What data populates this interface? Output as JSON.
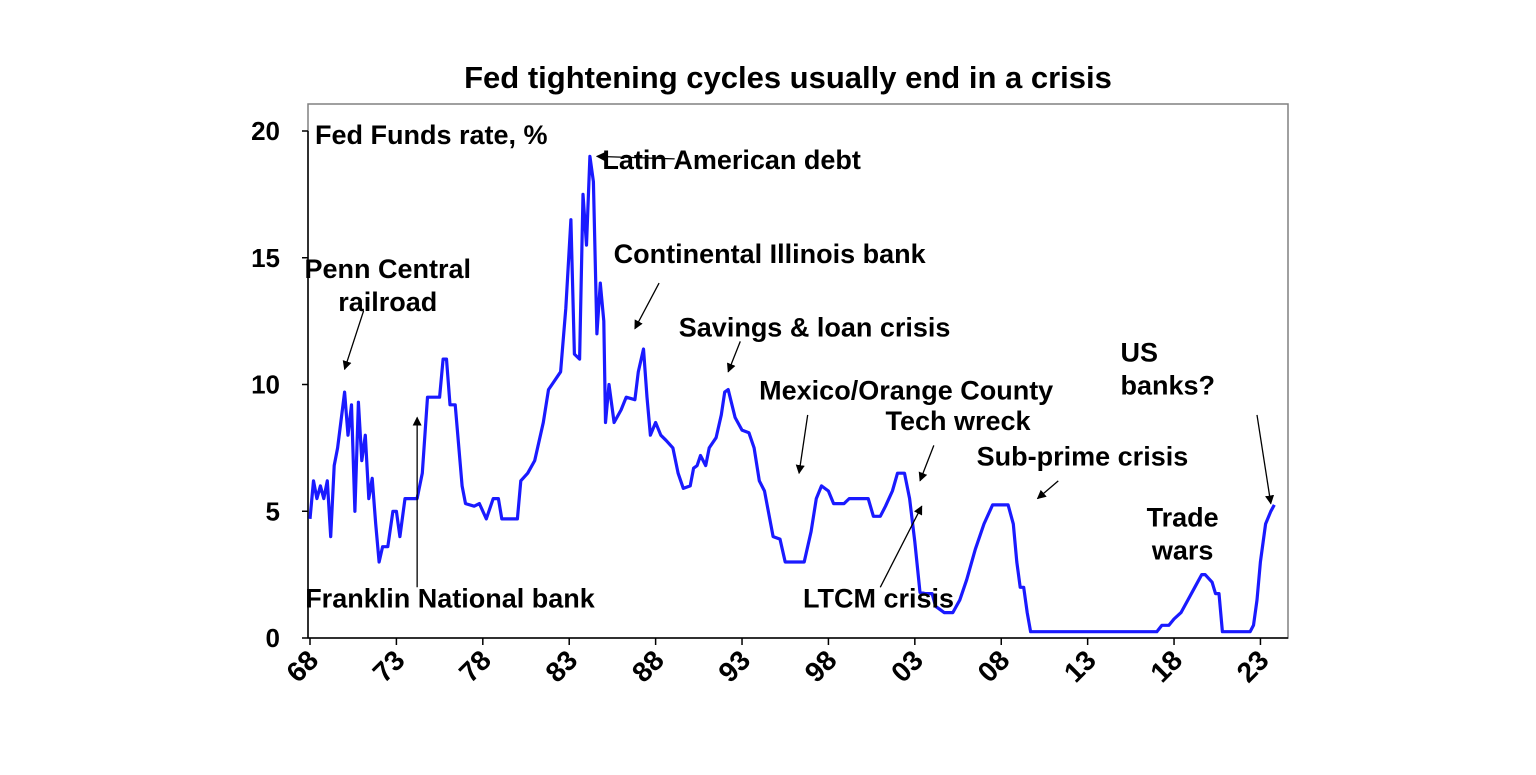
{
  "chart_data": {
    "type": "line",
    "title": "Fed tightening cycles usually end in a crisis",
    "series_label": "Fed Funds rate, %",
    "line_color": "#1a1aff",
    "xlim": [
      1968,
      2023.9
    ],
    "ylim": [
      0,
      20
    ],
    "y_ticks": [
      0,
      5,
      10,
      15,
      20
    ],
    "x_tick_labels": [
      {
        "x": 1968,
        "label": "68"
      },
      {
        "x": 1973,
        "label": "73"
      },
      {
        "x": 1978,
        "label": "78"
      },
      {
        "x": 1983,
        "label": "83"
      },
      {
        "x": 1988,
        "label": "88"
      },
      {
        "x": 1993,
        "label": "93"
      },
      {
        "x": 1998,
        "label": "98"
      },
      {
        "x": 2003,
        "label": "03"
      },
      {
        "x": 2008,
        "label": "08"
      },
      {
        "x": 2013,
        "label": "13"
      },
      {
        "x": 2018,
        "label": "18"
      },
      {
        "x": 2023,
        "label": "23"
      }
    ],
    "series": [
      {
        "name": "Fed Funds rate, %",
        "points": [
          [
            1968.0,
            4.7
          ],
          [
            1968.2,
            6.2
          ],
          [
            1968.4,
            5.5
          ],
          [
            1968.6,
            6.0
          ],
          [
            1968.8,
            5.5
          ],
          [
            1969.0,
            6.2
          ],
          [
            1969.2,
            4.0
          ],
          [
            1969.4,
            6.8
          ],
          [
            1969.6,
            7.5
          ],
          [
            1969.8,
            8.6
          ],
          [
            1970.0,
            9.7
          ],
          [
            1970.2,
            8.0
          ],
          [
            1970.4,
            9.2
          ],
          [
            1970.6,
            5.0
          ],
          [
            1970.8,
            9.3
          ],
          [
            1971.0,
            7.0
          ],
          [
            1971.2,
            8.0
          ],
          [
            1971.4,
            5.5
          ],
          [
            1971.6,
            6.3
          ],
          [
            1971.8,
            4.5
          ],
          [
            1972.0,
            3.0
          ],
          [
            1972.2,
            3.6
          ],
          [
            1972.5,
            3.6
          ],
          [
            1972.8,
            5.0
          ],
          [
            1973.0,
            5.0
          ],
          [
            1973.2,
            4.0
          ],
          [
            1973.5,
            5.5
          ],
          [
            1973.8,
            5.5
          ],
          [
            1974.2,
            5.5
          ],
          [
            1974.5,
            6.5
          ],
          [
            1974.8,
            9.5
          ],
          [
            1975.2,
            9.5
          ],
          [
            1975.5,
            9.5
          ],
          [
            1975.7,
            11.0
          ],
          [
            1975.9,
            11.0
          ],
          [
            1976.1,
            9.2
          ],
          [
            1976.4,
            9.2
          ],
          [
            1976.8,
            6.0
          ],
          [
            1977.0,
            5.3
          ],
          [
            1977.5,
            5.2
          ],
          [
            1977.8,
            5.3
          ],
          [
            1978.2,
            4.7
          ],
          [
            1978.6,
            5.5
          ],
          [
            1978.9,
            5.5
          ],
          [
            1979.1,
            4.7
          ],
          [
            1979.6,
            4.7
          ],
          [
            1980.0,
            4.7
          ],
          [
            1980.2,
            6.2
          ],
          [
            1980.6,
            6.5
          ],
          [
            1981.0,
            7.0
          ],
          [
            1981.5,
            8.5
          ],
          [
            1981.8,
            9.8
          ],
          [
            1982.1,
            10.1
          ],
          [
            1982.5,
            10.5
          ],
          [
            1982.8,
            13.0
          ],
          [
            1983.1,
            16.5
          ],
          [
            1983.3,
            11.2
          ],
          [
            1983.6,
            11.0
          ],
          [
            1983.8,
            17.5
          ],
          [
            1984.0,
            15.5
          ],
          [
            1984.2,
            19.0
          ],
          [
            1984.4,
            18.0
          ],
          [
            1984.6,
            12.0
          ],
          [
            1984.8,
            14.0
          ],
          [
            1985.0,
            12.5
          ],
          [
            1985.1,
            8.5
          ],
          [
            1985.3,
            10.0
          ],
          [
            1985.6,
            8.5
          ],
          [
            1986.0,
            9.0
          ],
          [
            1986.3,
            9.5
          ],
          [
            1986.8,
            9.4
          ],
          [
            1987.0,
            10.5
          ],
          [
            1987.3,
            11.4
          ],
          [
            1987.5,
            9.5
          ],
          [
            1987.7,
            8.0
          ],
          [
            1988.0,
            8.5
          ],
          [
            1988.3,
            8.0
          ],
          [
            1988.6,
            7.8
          ],
          [
            1989.0,
            7.5
          ],
          [
            1989.3,
            6.5
          ],
          [
            1989.6,
            5.9
          ],
          [
            1990.0,
            6.0
          ],
          [
            1990.2,
            6.7
          ],
          [
            1990.4,
            6.8
          ],
          [
            1990.6,
            7.2
          ],
          [
            1990.9,
            6.8
          ],
          [
            1991.1,
            7.5
          ],
          [
            1991.5,
            7.9
          ],
          [
            1991.8,
            8.8
          ],
          [
            1992.0,
            9.7
          ],
          [
            1992.2,
            9.8
          ],
          [
            1992.6,
            8.7
          ],
          [
            1993.0,
            8.2
          ],
          [
            1993.4,
            8.1
          ],
          [
            1993.7,
            7.5
          ],
          [
            1994.0,
            6.2
          ],
          [
            1994.3,
            5.8
          ],
          [
            1994.8,
            4.0
          ],
          [
            1995.2,
            3.9
          ],
          [
            1995.5,
            3.0
          ],
          [
            1996.0,
            3.0
          ],
          [
            1996.6,
            3.0
          ],
          [
            1997.0,
            4.2
          ],
          [
            1997.3,
            5.5
          ],
          [
            1997.6,
            6.0
          ],
          [
            1998.0,
            5.8
          ],
          [
            1998.3,
            5.3
          ],
          [
            1998.9,
            5.3
          ],
          [
            1999.2,
            5.5
          ],
          [
            1999.8,
            5.5
          ],
          [
            2000.3,
            5.5
          ],
          [
            2000.6,
            4.8
          ],
          [
            2001.0,
            4.8
          ],
          [
            2001.3,
            5.2
          ],
          [
            2001.7,
            5.8
          ],
          [
            2002.0,
            6.5
          ],
          [
            2002.4,
            6.5
          ],
          [
            2002.7,
            5.5
          ],
          [
            2003.0,
            3.8
          ],
          [
            2003.3,
            1.8
          ],
          [
            2003.6,
            1.75
          ],
          [
            2004.0,
            1.75
          ],
          [
            2004.2,
            1.25
          ],
          [
            2004.7,
            1.0
          ],
          [
            2005.2,
            1.0
          ],
          [
            2005.6,
            1.5
          ],
          [
            2006.0,
            2.3
          ],
          [
            2006.5,
            3.5
          ],
          [
            2007.0,
            4.5
          ],
          [
            2007.5,
            5.25
          ],
          [
            2007.9,
            5.25
          ],
          [
            2008.4,
            5.25
          ],
          [
            2008.7,
            4.5
          ],
          [
            2008.9,
            3.0
          ],
          [
            2009.1,
            2.0
          ],
          [
            2009.3,
            2.0
          ],
          [
            2009.5,
            1.0
          ],
          [
            2009.7,
            0.25
          ],
          [
            2010.5,
            0.25
          ],
          [
            2012.0,
            0.25
          ],
          [
            2014.0,
            0.25
          ],
          [
            2016.0,
            0.25
          ],
          [
            2017.0,
            0.25
          ],
          [
            2017.3,
            0.5
          ],
          [
            2017.7,
            0.5
          ],
          [
            2018.0,
            0.75
          ],
          [
            2018.4,
            1.0
          ],
          [
            2018.8,
            1.5
          ],
          [
            2019.2,
            2.0
          ],
          [
            2019.6,
            2.5
          ],
          [
            2019.8,
            2.5
          ],
          [
            2020.2,
            2.2
          ],
          [
            2020.4,
            1.75
          ],
          [
            2020.6,
            1.75
          ],
          [
            2020.8,
            0.25
          ],
          [
            2021.5,
            0.25
          ],
          [
            2022.4,
            0.25
          ],
          [
            2022.6,
            0.5
          ],
          [
            2022.8,
            1.5
          ],
          [
            2023.0,
            3.0
          ],
          [
            2023.3,
            4.5
          ],
          [
            2023.6,
            5.0
          ],
          [
            2023.8,
            5.25
          ]
        ]
      }
    ],
    "annotations": [
      {
        "lines": [
          "Latin American debt"
        ],
        "text_x": 1992.4,
        "text_y": 18.5,
        "anchor": "middle",
        "arrow_from": [
          1989.1,
          18.9
        ],
        "arrow_to": [
          1984.6,
          19.0
        ]
      },
      {
        "lines": [
          "Penn Central",
          "railroad"
        ],
        "text_x": 1972.5,
        "text_y": 14.2,
        "anchor": "middle",
        "arrow_from": [
          1971.1,
          12.9
        ],
        "arrow_to": [
          1970.0,
          10.6
        ]
      },
      {
        "lines": [
          "Continental Illinois bank"
        ],
        "text_x": 1994.6,
        "text_y": 14.8,
        "anchor": "middle",
        "arrow_from": [
          1988.2,
          14.0
        ],
        "arrow_to": [
          1986.8,
          12.2
        ]
      },
      {
        "lines": [
          "Savings & loan crisis"
        ],
        "text_x": 1997.2,
        "text_y": 11.9,
        "anchor": "middle",
        "arrow_from": [
          1992.9,
          11.7
        ],
        "arrow_to": [
          1992.2,
          10.5
        ]
      },
      {
        "lines": [
          "Mexico/Orange County"
        ],
        "text_x": 2002.5,
        "text_y": 9.4,
        "anchor": "middle",
        "arrow_from": [
          1996.8,
          8.8
        ],
        "arrow_to": [
          1996.3,
          6.5
        ]
      },
      {
        "lines": [
          "Tech wreck"
        ],
        "text_x": 2005.5,
        "text_y": 8.2,
        "anchor": "middle",
        "arrow_from": [
          2004.1,
          7.6
        ],
        "arrow_to": [
          2003.3,
          6.2
        ]
      },
      {
        "lines": [
          "Sub-prime crisis"
        ],
        "text_x": 2012.7,
        "text_y": 6.8,
        "anchor": "middle",
        "arrow_from": [
          2011.3,
          6.2
        ],
        "arrow_to": [
          2010.1,
          5.5
        ]
      },
      {
        "lines": [
          "US",
          "banks?"
        ],
        "text_x": 2014.9,
        "text_y": 10.9,
        "anchor": "start",
        "arrow_from": [
          2022.8,
          8.8
        ],
        "arrow_to": [
          2023.6,
          5.3
        ]
      },
      {
        "lines": [
          "Trade",
          "wars"
        ],
        "text_x": 2018.5,
        "text_y": 4.4,
        "anchor": "middle",
        "arrow_from": null,
        "arrow_to": null
      },
      {
        "lines": [
          "Franklin National bank"
        ],
        "text_x": 1976.1,
        "text_y": 1.2,
        "anchor": "middle",
        "arrow_from": [
          1974.2,
          2.0
        ],
        "arrow_to": [
          1974.2,
          8.7
        ]
      },
      {
        "lines": [
          "LTCM crisis"
        ],
        "text_x": 2000.9,
        "text_y": 1.2,
        "anchor": "middle",
        "arrow_from": [
          2001.0,
          2.0
        ],
        "arrow_to": [
          2003.4,
          5.2
        ]
      }
    ]
  }
}
